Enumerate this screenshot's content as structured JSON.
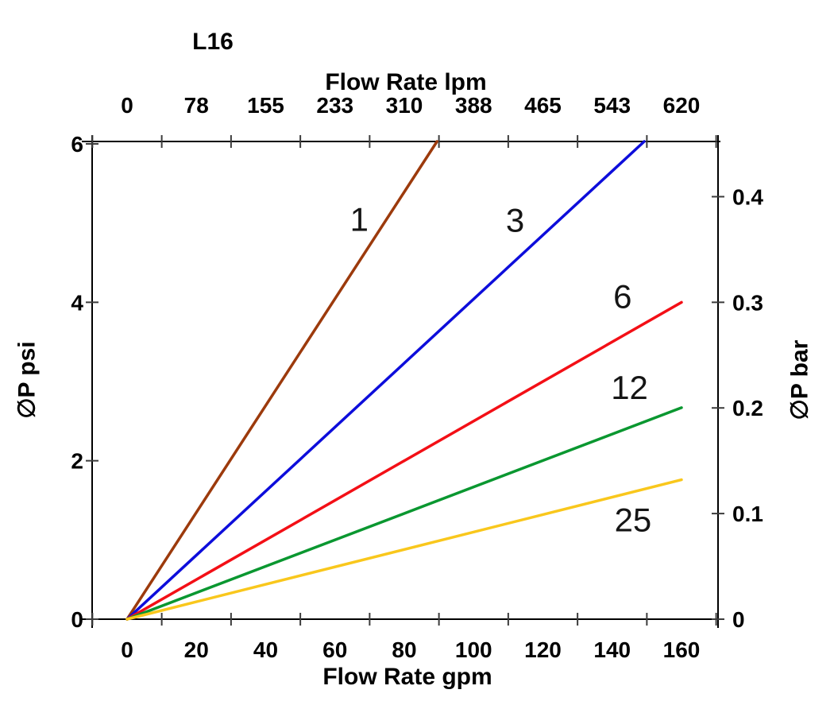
{
  "chart_data": {
    "type": "line",
    "title": "L16",
    "x_axis_top": {
      "label": "Flow Rate lpm",
      "ticks": [
        0,
        78,
        155,
        233,
        310,
        388,
        465,
        543,
        620
      ],
      "unit": "lpm"
    },
    "x_axis_bottom": {
      "label": "Flow Rate gpm",
      "ticks": [
        0,
        20,
        40,
        60,
        80,
        100,
        120,
        140,
        160
      ],
      "unit": "gpm"
    },
    "y_axis_left": {
      "label": "∅P psi",
      "ticks": [
        0,
        2,
        4,
        6
      ],
      "range": [
        0,
        6
      ],
      "unit": "psi"
    },
    "y_axis_right": {
      "label": "∅P bar",
      "ticks": [
        0,
        0.1,
        0.2,
        0.3,
        0.4
      ],
      "range": [
        0,
        0.45
      ],
      "unit": "bar"
    },
    "grid": false,
    "legend": "inline-labels",
    "series": [
      {
        "name": "1",
        "color": "#9C3A0C",
        "points_gpm_psi": [
          [
            0,
            0
          ],
          [
            89,
            6
          ]
        ],
        "label_at_gpm_psi": [
          67,
          5.05
        ]
      },
      {
        "name": "3",
        "color": "#0D0DDB",
        "points_gpm_psi": [
          [
            0,
            0
          ],
          [
            148.5,
            6
          ]
        ],
        "label_at_gpm_psi": [
          112,
          5.04
        ]
      },
      {
        "name": "6",
        "color": "#F30F16",
        "points_gpm_psi": [
          [
            0,
            0
          ],
          [
            160,
            4.0
          ]
        ],
        "label_at_gpm_psi": [
          143,
          4.08
        ]
      },
      {
        "name": "12",
        "color": "#0A9730",
        "points_gpm_psi": [
          [
            0,
            0
          ],
          [
            160,
            2.67
          ]
        ],
        "label_at_gpm_psi": [
          145,
          2.93
        ]
      },
      {
        "name": "25",
        "color": "#F9C71C",
        "points_gpm_psi": [
          [
            0,
            0
          ],
          [
            160,
            1.76
          ]
        ],
        "label_at_gpm_psi": [
          146,
          1.26
        ]
      }
    ]
  }
}
